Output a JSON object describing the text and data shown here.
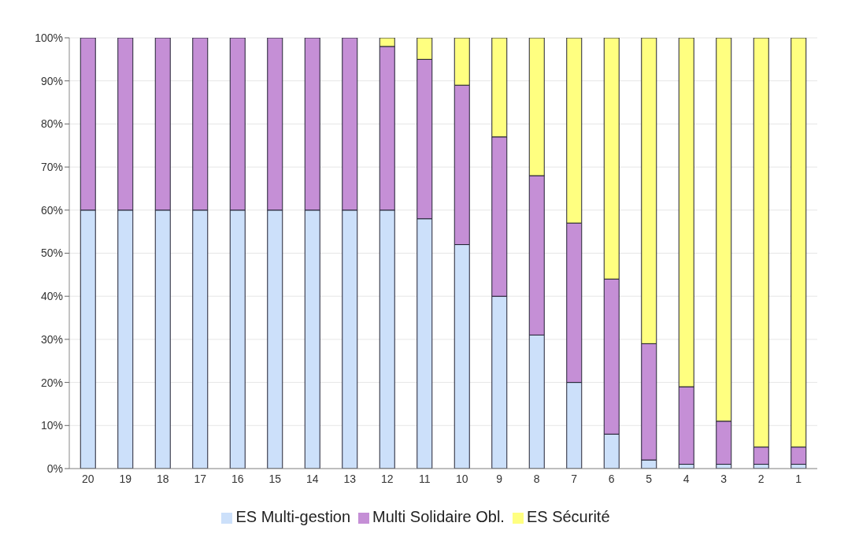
{
  "chart_data": {
    "type": "bar",
    "stacked": true,
    "categories": [
      "20",
      "19",
      "18",
      "17",
      "16",
      "15",
      "14",
      "13",
      "12",
      "11",
      "10",
      "9",
      "8",
      "7",
      "6",
      "5",
      "4",
      "3",
      "2",
      "1"
    ],
    "series": [
      {
        "name": "ES Multi-gestion",
        "color": "#cce0fa",
        "values": [
          60,
          60,
          60,
          60,
          60,
          60,
          60,
          60,
          60,
          58,
          52,
          40,
          31,
          20,
          8,
          2,
          1,
          1,
          1,
          1
        ]
      },
      {
        "name": "Multi Solidaire Obl.",
        "color": "#c58fd6",
        "values": [
          40,
          40,
          40,
          40,
          40,
          40,
          40,
          40,
          38,
          37,
          37,
          37,
          37,
          37,
          36,
          27,
          18,
          10,
          4,
          4
        ]
      },
      {
        "name": "ES Sécurité",
        "color": "#ffff80",
        "values": [
          0,
          0,
          0,
          0,
          0,
          0,
          0,
          0,
          2,
          5,
          11,
          23,
          32,
          43,
          56,
          71,
          81,
          89,
          95,
          95
        ]
      }
    ],
    "ylim": [
      0,
      100
    ],
    "yticks": [
      {
        "value": 0,
        "label": "0%"
      },
      {
        "value": 10,
        "label": "10%"
      },
      {
        "value": 20,
        "label": "20%"
      },
      {
        "value": 30,
        "label": "30%"
      },
      {
        "value": 40,
        "label": "40%"
      },
      {
        "value": 50,
        "label": "50%"
      },
      {
        "value": 60,
        "label": "60%"
      },
      {
        "value": 70,
        "label": "70%"
      },
      {
        "value": 80,
        "label": "80%"
      },
      {
        "value": 90,
        "label": "90%"
      },
      {
        "value": 100,
        "label": "100%"
      }
    ],
    "grid": "y",
    "legend": "bottom"
  }
}
